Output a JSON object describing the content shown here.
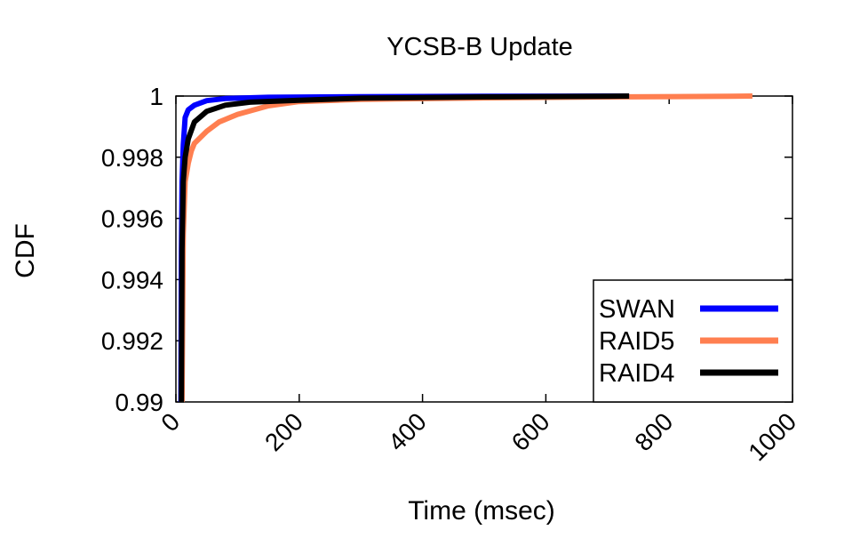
{
  "chart_data": {
    "type": "line",
    "title": "YCSB-B Update",
    "xlabel": "Time (msec)",
    "ylabel": "CDF",
    "xlim": [
      0,
      1000
    ],
    "ylim": [
      0.99,
      1.0
    ],
    "xticks": [
      0,
      200,
      400,
      600,
      800,
      1000
    ],
    "xtick_labels": [
      "0",
      "200",
      "400",
      "600",
      "800",
      "1000"
    ],
    "yticks": [
      0.99,
      0.992,
      0.994,
      0.996,
      0.998,
      1.0
    ],
    "ytick_labels": [
      "0.99",
      "0.992",
      "0.994",
      "0.996",
      "0.998",
      "1"
    ],
    "grid": false,
    "legend_position": "bottom-right",
    "series": [
      {
        "name": "SWAN",
        "color": "#0000ff",
        "points": [
          [
            8,
            0.99
          ],
          [
            9,
            0.995
          ],
          [
            10,
            0.9972
          ],
          [
            12,
            0.9984
          ],
          [
            15,
            0.9993
          ],
          [
            20,
            0.99955
          ],
          [
            30,
            0.9997
          ],
          [
            50,
            0.99985
          ],
          [
            80,
            0.99992
          ],
          [
            150,
            0.99996
          ],
          [
            300,
            0.99998
          ],
          [
            500,
            0.99999
          ],
          [
            700,
            1.0
          ],
          [
            735,
            1.0
          ]
        ]
      },
      {
        "name": "RAID5",
        "color": "#ff7f50",
        "points": [
          [
            10,
            0.99
          ],
          [
            12,
            0.9955
          ],
          [
            15,
            0.9972
          ],
          [
            20,
            0.9978
          ],
          [
            25,
            0.9982
          ],
          [
            30,
            0.99845
          ],
          [
            40,
            0.99865
          ],
          [
            50,
            0.99885
          ],
          [
            70,
            0.99915
          ],
          [
            100,
            0.9994
          ],
          [
            150,
            0.99968
          ],
          [
            200,
            0.99982
          ],
          [
            300,
            0.99989
          ],
          [
            500,
            0.99994
          ],
          [
            700,
            0.99997
          ],
          [
            900,
            0.99999
          ],
          [
            935,
            1.0
          ]
        ]
      },
      {
        "name": "RAID4",
        "color": "#000000",
        "points": [
          [
            9,
            0.99
          ],
          [
            10,
            0.995
          ],
          [
            12,
            0.9972
          ],
          [
            15,
            0.998
          ],
          [
            20,
            0.9986
          ],
          [
            30,
            0.99915
          ],
          [
            50,
            0.9995
          ],
          [
            80,
            0.9997
          ],
          [
            120,
            0.9998
          ],
          [
            200,
            0.99986
          ],
          [
            300,
            0.99993
          ],
          [
            500,
            0.99997
          ],
          [
            700,
            0.99999
          ],
          [
            735,
            1.0
          ]
        ]
      }
    ]
  }
}
